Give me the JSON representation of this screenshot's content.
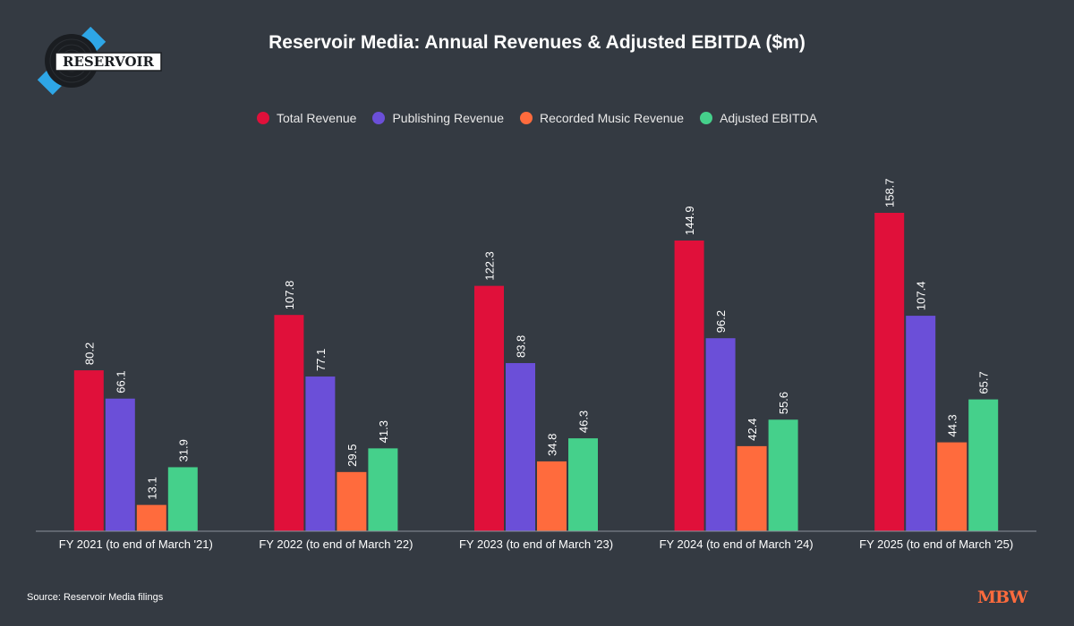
{
  "title": "Reservoir Media: Annual Revenues & Adjusted EBITDA ($m)",
  "logo_text": "RESERVOIR",
  "source": "Source: Reservoir Media filings",
  "brand": "MBW",
  "colors": {
    "background": "#343a42",
    "total_revenue": "#e0103a",
    "publishing_revenue": "#6b4fd8",
    "recorded_music_revenue": "#ff6b3d",
    "adjusted_ebitda": "#45d08b",
    "axis": "#8a9099"
  },
  "chart_data": {
    "type": "bar",
    "title": "Reservoir Media: Annual Revenues & Adjusted EBITDA ($m)",
    "xlabel": "",
    "ylabel": "",
    "ylim": [
      0,
      170
    ],
    "grid": false,
    "legend_position": "top-center",
    "categories": [
      "FY 2021 (to end of March '21)",
      "FY 2022 (to end of March '22)",
      "FY 2023 (to end of March '23)",
      "FY 2024 (to end of March '24)",
      "FY 2025 (to end of March '25)"
    ],
    "series": [
      {
        "name": "Total Revenue",
        "color": "#e0103a",
        "values": [
          80.2,
          107.8,
          122.3,
          144.9,
          158.7
        ]
      },
      {
        "name": "Publishing Revenue",
        "color": "#6b4fd8",
        "values": [
          66.1,
          77.1,
          83.8,
          96.2,
          107.4
        ]
      },
      {
        "name": "Recorded Music Revenue",
        "color": "#ff6b3d",
        "values": [
          13.1,
          29.5,
          34.8,
          42.4,
          44.3
        ]
      },
      {
        "name": "Adjusted EBITDA",
        "color": "#45d08b",
        "values": [
          31.9,
          41.3,
          46.3,
          55.6,
          65.7
        ]
      }
    ]
  }
}
